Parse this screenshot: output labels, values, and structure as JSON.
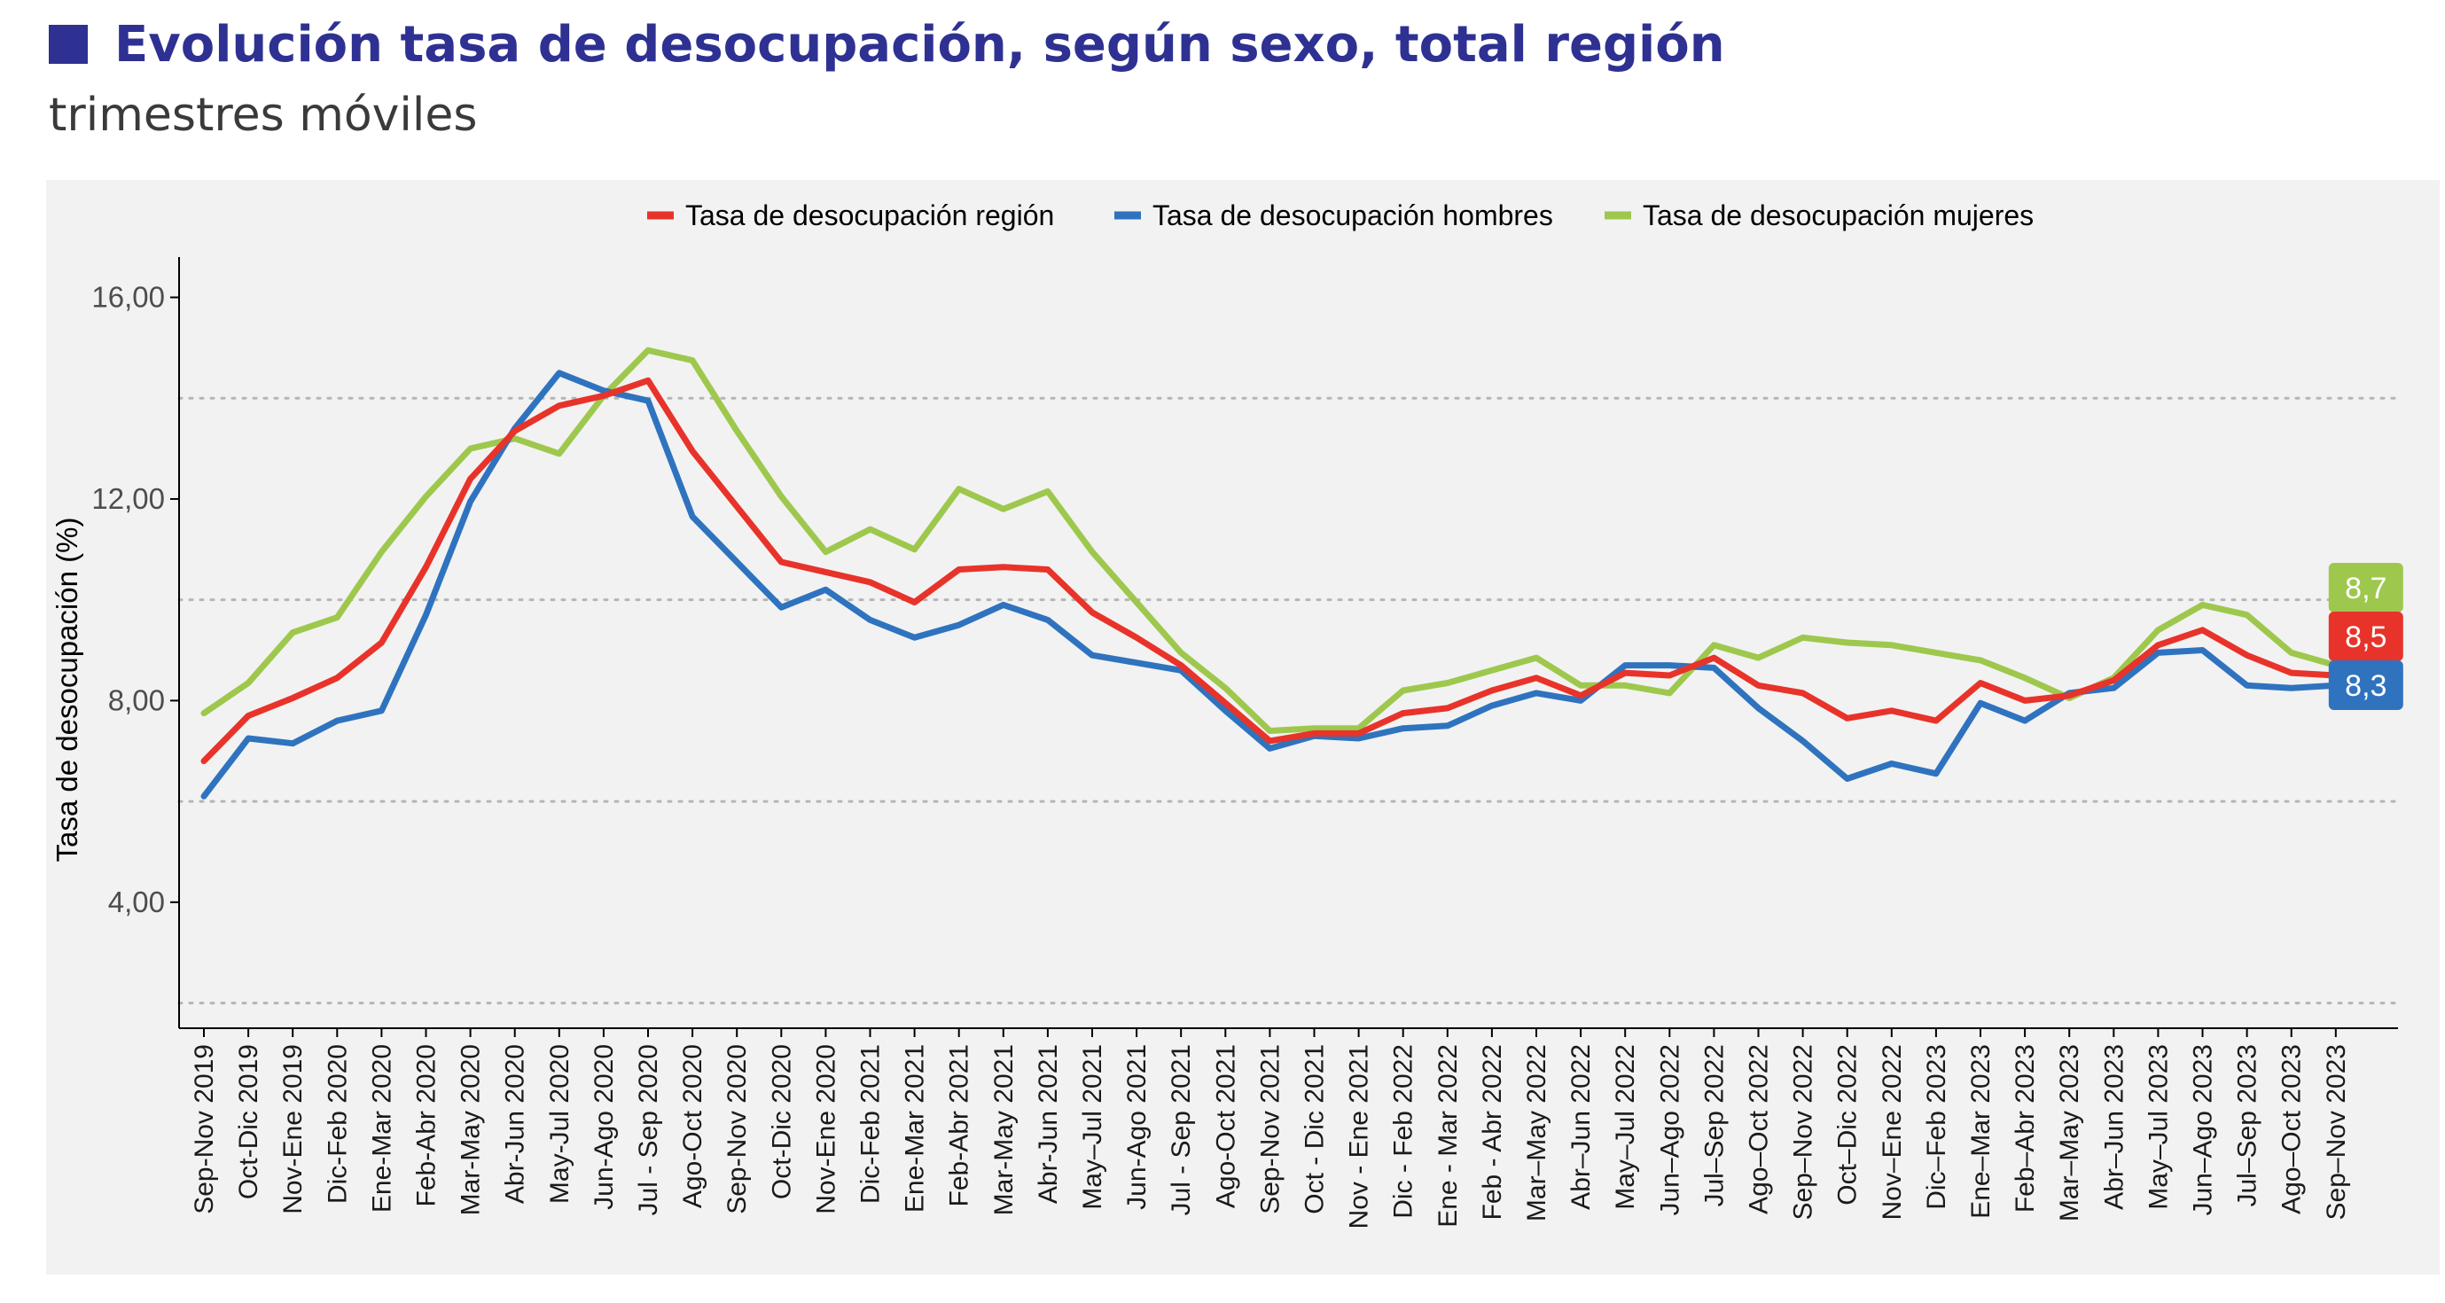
{
  "title": "Evolución tasa de desocupación, según sexo, total región",
  "subtitle": "trimestres móviles",
  "colors": {
    "title": "#2e3192",
    "panel": "#f2f2f2",
    "region": "#e8332a",
    "hombres": "#2f73bf",
    "mujeres": "#9ec84d"
  },
  "chart_data": {
    "type": "line",
    "ylabel": "Tasa de desocupación (%)",
    "xlabel": "",
    "ylim": [
      1.5,
      16.8
    ],
    "yticks": [
      "4,00",
      "8,00",
      "12,00",
      "16,00"
    ],
    "ytick_values": [
      4,
      8,
      12,
      16
    ],
    "grid_dotted_values": [
      2,
      6,
      10,
      14
    ],
    "legend_position": "top",
    "categories": [
      "Sep-Nov 2019",
      "Oct-Dic 2019",
      "Nov-Ene 2019",
      "Dic-Feb 2020",
      "Ene-Mar 2020",
      "Feb-Abr 2020",
      "Mar-May 2020",
      "Abr-Jun 2020",
      "May-Jul 2020",
      "Jun-Ago 2020",
      "Jul - Sep 2020",
      "Ago-Oct 2020",
      "Sep-Nov 2020",
      "Oct-Dic 2020",
      "Nov-Ene 2020",
      "Dic-Feb 2021",
      "Ene-Mar 2021",
      "Feb-Abr 2021",
      "Mar-May 2021",
      "Abr-Jun 2021",
      "May–Jul 2021",
      "Jun-Ago 2021",
      "Jul - Sep 2021",
      "Ago-Oct 2021",
      "Sep-Nov 2021",
      "Oct - Dic 2021",
      "Nov - Ene 2021",
      "Dic - Feb 2022",
      "Ene - Mar 2022",
      "Feb - Abr 2022",
      "Mar–May 2022",
      "Abr–Jun 2022",
      "May–Jul 2022",
      "Jun–Ago 2022",
      "Jul–Sep 2022",
      "Ago–Oct 2022",
      "Sep–Nov 2022",
      "Oct–Dic 2022",
      "Nov–Ene 2022",
      "Dic–Feb 2023",
      "Ene–Mar 2023",
      "Feb–Abr 2023",
      "Mar–May 2023",
      "Abr–Jun 2023",
      "May–Jul 2023",
      "Jun–Ago 2023",
      "Jul–Sep 2023",
      "Ago–Oct 2023",
      "Sep–Nov 2023"
    ],
    "series": [
      {
        "key": "region",
        "name": "Tasa de desocupación región",
        "end_label": "8,5",
        "values": [
          6.8,
          7.7,
          8.05,
          8.45,
          9.15,
          10.65,
          12.4,
          13.35,
          13.85,
          14.05,
          14.35,
          12.95,
          11.85,
          10.75,
          10.55,
          10.35,
          9.95,
          10.6,
          10.65,
          10.6,
          9.75,
          9.25,
          8.7,
          7.95,
          7.2,
          7.35,
          7.35,
          7.75,
          7.85,
          8.2,
          8.45,
          8.1,
          8.55,
          8.5,
          8.85,
          8.3,
          8.15,
          7.65,
          7.8,
          7.6,
          8.35,
          8.0,
          8.1,
          8.4,
          9.1,
          9.4,
          8.9,
          8.55,
          8.5
        ]
      },
      {
        "key": "hombres",
        "name": "Tasa de desocupación hombres",
        "end_label": "8,3",
        "values": [
          6.1,
          7.25,
          7.15,
          7.6,
          7.8,
          9.7,
          11.95,
          13.4,
          14.5,
          14.15,
          13.95,
          11.65,
          10.75,
          9.85,
          10.2,
          9.6,
          9.25,
          9.5,
          9.9,
          9.6,
          8.9,
          8.75,
          8.6,
          7.8,
          7.05,
          7.3,
          7.25,
          7.45,
          7.5,
          7.9,
          8.15,
          8.0,
          8.7,
          8.7,
          8.65,
          7.85,
          7.2,
          6.45,
          6.75,
          6.55,
          7.95,
          7.6,
          8.15,
          8.25,
          8.95,
          9.0,
          8.3,
          8.25,
          8.3
        ]
      },
      {
        "key": "mujeres",
        "name": "Tasa de desocupación mujeres",
        "end_label": "8,7",
        "values": [
          7.75,
          8.35,
          9.35,
          9.65,
          10.95,
          12.05,
          13.0,
          13.2,
          12.9,
          14.05,
          14.95,
          14.75,
          13.35,
          12.05,
          10.95,
          11.4,
          11.0,
          12.2,
          11.8,
          12.15,
          10.95,
          9.95,
          8.95,
          8.25,
          7.4,
          7.45,
          7.45,
          8.2,
          8.35,
          8.6,
          8.85,
          8.3,
          8.3,
          8.15,
          9.1,
          8.85,
          9.25,
          9.15,
          9.1,
          8.95,
          8.8,
          8.45,
          8.05,
          8.45,
          9.4,
          9.9,
          9.7,
          8.95,
          8.7
        ]
      }
    ]
  }
}
